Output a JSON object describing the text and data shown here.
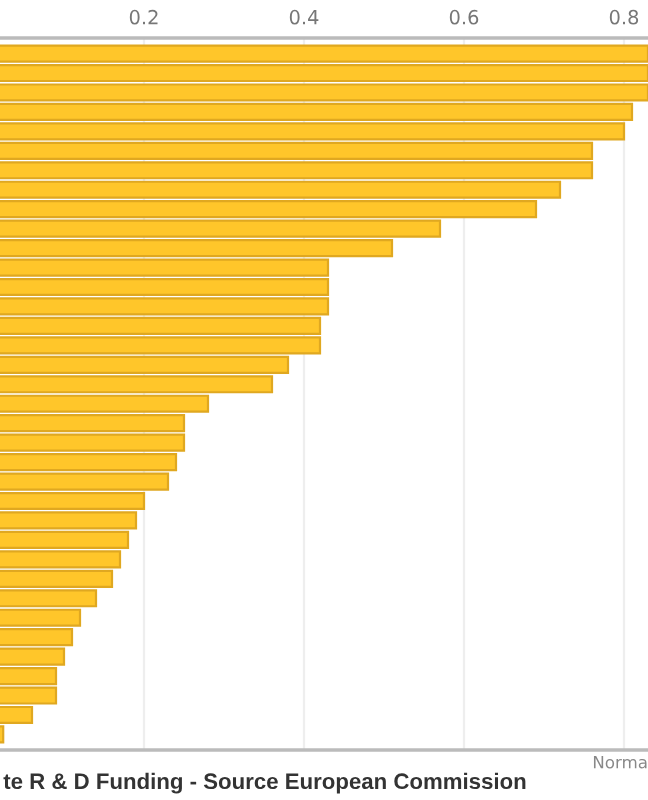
{
  "chart_data": {
    "type": "bar",
    "orientation": "horizontal",
    "title": "te R & D Funding - Source European Commission",
    "xlabel": "Norma",
    "categories": [
      null,
      null,
      null,
      null,
      null,
      null,
      null,
      null,
      null,
      null,
      null,
      null,
      null,
      null,
      null,
      null,
      null,
      null,
      null,
      null,
      null,
      null,
      null,
      null,
      null,
      null,
      null,
      null,
      null,
      null,
      null,
      null,
      null,
      null,
      null,
      null
    ],
    "values": [
      0.83,
      0.83,
      0.83,
      0.81,
      0.8,
      0.76,
      0.76,
      0.72,
      0.69,
      0.57,
      0.51,
      0.43,
      0.43,
      0.43,
      0.42,
      0.42,
      0.38,
      0.36,
      0.28,
      0.25,
      0.25,
      0.24,
      0.23,
      0.2,
      0.19,
      0.18,
      0.17,
      0.16,
      0.14,
      0.12,
      0.11,
      0.1,
      0.09,
      0.09,
      0.06,
      0.024
    ],
    "color": "#ffc62a",
    "xlim": [
      0.02,
      0.83
    ],
    "xticks": [
      0.2,
      0.4,
      0.6,
      0.8
    ],
    "grid": "x",
    "tick_labels": "x"
  }
}
